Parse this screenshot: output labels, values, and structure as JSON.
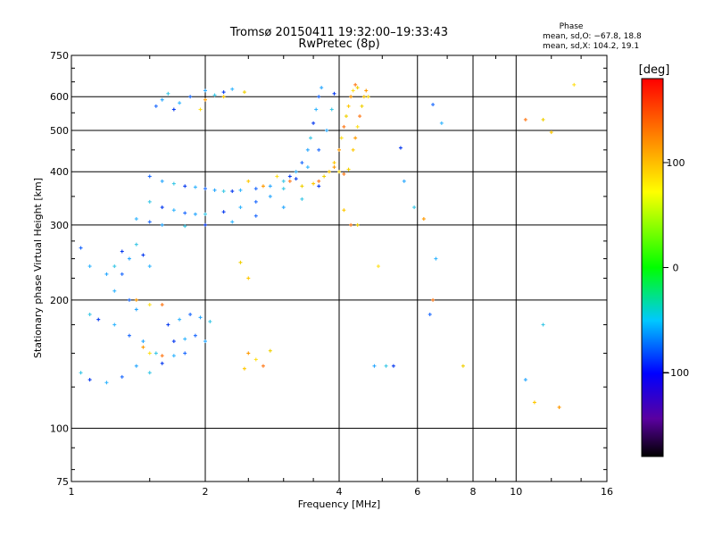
{
  "chart_data": {
    "type": "scatter",
    "title": "Tromsø 20150411 19:32:00–19:33:43",
    "subtitle": "RwPretec (8p)",
    "xlabel": "Frequency [MHz]",
    "ylabel": "Stationary phase Virtual Height [km]",
    "x_scale": "log",
    "y_scale": "log",
    "xlim": [
      1,
      16
    ],
    "ylim": [
      75,
      750
    ],
    "grid": true,
    "x_ticks": [
      1,
      2,
      4,
      6,
      8,
      10,
      16
    ],
    "x_tick_labels": [
      "1",
      "2",
      "4",
      "6",
      "8",
      "10",
      "16"
    ],
    "y_ticks": [
      75,
      100,
      200,
      300,
      400,
      500,
      600,
      750
    ],
    "y_tick_labels": [
      "75",
      "100",
      "200",
      "300",
      "400",
      "500",
      "600",
      "750"
    ],
    "stats": {
      "heading": "Phase",
      "line_O": "mean, sd,O: −67.8, 18.8",
      "line_X": "mean, sd,X: 104.2, 19.1",
      "O_mean": -67.8,
      "O_sd": 18.8,
      "X_mean": 104.2,
      "X_sd": 19.1
    },
    "colorbar": {
      "label": "[deg]",
      "range": [
        -180,
        180
      ],
      "ticks": [
        100,
        0,
        -100
      ],
      "tick_labels": [
        "100",
        "0",
        "−100"
      ],
      "colormap": "rainbow"
    },
    "series": [
      {
        "name": "O",
        "points": [
          [
            1.55,
            570
          ],
          [
            1.6,
            590
          ],
          [
            1.65,
            610
          ],
          [
            1.7,
            560
          ],
          [
            1.75,
            580
          ],
          [
            1.85,
            600
          ],
          [
            2.0,
            620
          ],
          [
            2.1,
            605
          ],
          [
            2.2,
            615
          ],
          [
            2.3,
            625
          ],
          [
            1.5,
            390
          ],
          [
            1.6,
            380
          ],
          [
            1.7,
            375
          ],
          [
            1.8,
            370
          ],
          [
            1.9,
            368
          ],
          [
            2.0,
            365
          ],
          [
            2.1,
            362
          ],
          [
            2.2,
            360
          ],
          [
            2.3,
            360
          ],
          [
            2.4,
            362
          ],
          [
            2.6,
            365
          ],
          [
            2.8,
            370
          ],
          [
            3.0,
            380
          ],
          [
            3.1,
            390
          ],
          [
            3.2,
            400
          ],
          [
            3.3,
            420
          ],
          [
            3.4,
            450
          ],
          [
            3.45,
            480
          ],
          [
            3.5,
            520
          ],
          [
            3.55,
            560
          ],
          [
            3.6,
            600
          ],
          [
            3.65,
            630
          ],
          [
            1.5,
            340
          ],
          [
            1.6,
            330
          ],
          [
            1.7,
            325
          ],
          [
            1.8,
            320
          ],
          [
            1.9,
            318
          ],
          [
            2.0,
            318
          ],
          [
            2.2,
            322
          ],
          [
            2.4,
            330
          ],
          [
            2.6,
            340
          ],
          [
            2.8,
            350
          ],
          [
            3.0,
            365
          ],
          [
            3.2,
            385
          ],
          [
            3.4,
            410
          ],
          [
            3.6,
            450
          ],
          [
            3.75,
            500
          ],
          [
            3.85,
            560
          ],
          [
            3.9,
            610
          ],
          [
            1.4,
            310
          ],
          [
            1.5,
            305
          ],
          [
            1.6,
            300
          ],
          [
            1.8,
            298
          ],
          [
            2.0,
            300
          ],
          [
            2.3,
            305
          ],
          [
            2.6,
            315
          ],
          [
            3.0,
            330
          ],
          [
            3.3,
            345
          ],
          [
            3.6,
            370
          ],
          [
            1.25,
            210
          ],
          [
            1.3,
            230
          ],
          [
            1.35,
            250
          ],
          [
            1.4,
            270
          ],
          [
            1.45,
            255
          ],
          [
            1.5,
            240
          ],
          [
            1.35,
            200
          ],
          [
            1.4,
            190
          ],
          [
            1.1,
            185
          ],
          [
            1.15,
            180
          ],
          [
            1.25,
            175
          ],
          [
            1.35,
            165
          ],
          [
            1.45,
            160
          ],
          [
            1.55,
            150
          ],
          [
            1.65,
            175
          ],
          [
            1.75,
            180
          ],
          [
            1.85,
            185
          ],
          [
            1.95,
            182
          ],
          [
            2.05,
            178
          ],
          [
            1.7,
            160
          ],
          [
            1.8,
            162
          ],
          [
            1.9,
            165
          ],
          [
            2.0,
            160
          ],
          [
            1.05,
            135
          ],
          [
            1.1,
            130
          ],
          [
            1.2,
            128
          ],
          [
            1.3,
            132
          ],
          [
            1.4,
            140
          ],
          [
            1.5,
            135
          ],
          [
            1.6,
            142
          ],
          [
            1.7,
            148
          ],
          [
            1.8,
            150
          ],
          [
            1.2,
            230
          ],
          [
            1.25,
            240
          ],
          [
            1.3,
            260
          ],
          [
            1.1,
            240
          ],
          [
            1.05,
            265
          ],
          [
            4.8,
            140
          ],
          [
            5.1,
            140
          ],
          [
            5.3,
            140
          ],
          [
            6.6,
            250
          ],
          [
            6.4,
            185
          ],
          [
            5.6,
            380
          ],
          [
            5.9,
            330
          ],
          [
            5.5,
            455
          ],
          [
            6.8,
            520
          ],
          [
            6.5,
            575
          ],
          [
            10.5,
            130
          ],
          [
            11.5,
            175
          ]
        ]
      },
      {
        "name": "X",
        "points": [
          [
            3.9,
            420
          ],
          [
            4.0,
            450
          ],
          [
            4.05,
            480
          ],
          [
            4.1,
            510
          ],
          [
            4.15,
            540
          ],
          [
            4.2,
            570
          ],
          [
            4.25,
            600
          ],
          [
            4.3,
            620
          ],
          [
            4.35,
            640
          ],
          [
            4.4,
            630
          ],
          [
            4.3,
            450
          ],
          [
            4.35,
            480
          ],
          [
            4.4,
            510
          ],
          [
            4.45,
            540
          ],
          [
            4.5,
            570
          ],
          [
            4.55,
            600
          ],
          [
            4.6,
            620
          ],
          [
            4.65,
            600
          ],
          [
            3.6,
            380
          ],
          [
            3.7,
            390
          ],
          [
            3.8,
            400
          ],
          [
            3.9,
            410
          ],
          [
            4.0,
            400
          ],
          [
            4.1,
            395
          ],
          [
            4.2,
            405
          ],
          [
            2.5,
            380
          ],
          [
            2.7,
            370
          ],
          [
            2.9,
            390
          ],
          [
            3.1,
            380
          ],
          [
            3.3,
            370
          ],
          [
            3.5,
            375
          ],
          [
            1.4,
            200
          ],
          [
            1.5,
            195
          ],
          [
            1.6,
            195
          ],
          [
            2.4,
            245
          ],
          [
            2.5,
            225
          ],
          [
            2.5,
            150
          ],
          [
            2.6,
            145
          ],
          [
            2.7,
            140
          ],
          [
            2.8,
            152
          ],
          [
            2.45,
            138
          ],
          [
            1.45,
            155
          ],
          [
            1.5,
            150
          ],
          [
            1.6,
            148
          ],
          [
            2.45,
            615
          ],
          [
            2.2,
            600
          ],
          [
            2.0,
            590
          ],
          [
            1.95,
            560
          ],
          [
            4.25,
            300
          ],
          [
            4.4,
            300
          ],
          [
            4.1,
            325
          ],
          [
            6.2,
            310
          ],
          [
            4.9,
            240
          ],
          [
            6.5,
            200
          ],
          [
            7.6,
            140
          ],
          [
            11.0,
            115
          ],
          [
            12.5,
            112
          ],
          [
            13.5,
            640
          ],
          [
            10.5,
            530
          ],
          [
            11.5,
            530
          ],
          [
            12.0,
            495
          ]
        ]
      }
    ]
  }
}
